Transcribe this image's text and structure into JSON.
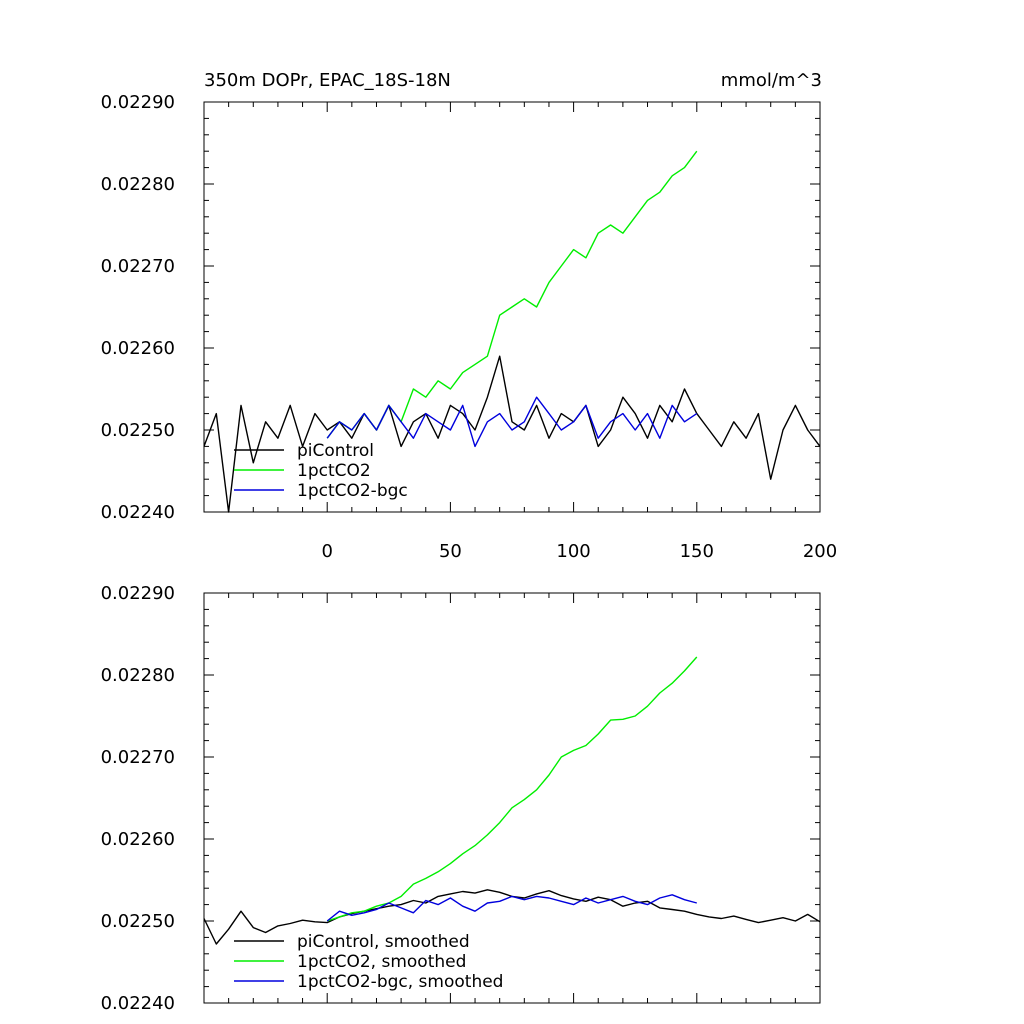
{
  "chart_data": [
    {
      "type": "line",
      "title_left": "350m DOPr, EPAC_18S-18N",
      "title_right": "mmol/m^3",
      "xlim": [
        -50,
        200
      ],
      "ylim": [
        0.0224,
        0.0229
      ],
      "yticks": [
        "0.02290",
        "0.02280",
        "0.02270",
        "0.02260",
        "0.02250",
        "0.02240"
      ],
      "xticks": [
        "0",
        "50",
        "100",
        "150",
        "200"
      ],
      "series": [
        {
          "name": "piControl",
          "color": "#000000",
          "x": [
            -50,
            -45,
            -40,
            -35,
            -30,
            -25,
            -20,
            -15,
            -10,
            -5,
            0,
            5,
            10,
            15,
            20,
            25,
            30,
            35,
            40,
            45,
            50,
            55,
            60,
            65,
            70,
            75,
            80,
            85,
            90,
            95,
            100,
            105,
            110,
            115,
            120,
            125,
            130,
            135,
            140,
            145,
            150,
            155,
            160,
            165,
            170,
            175,
            180,
            185,
            190,
            195,
            200
          ],
          "values": [
            0.02248,
            0.02252,
            0.0224,
            0.02253,
            0.02246,
            0.02251,
            0.02249,
            0.02253,
            0.02248,
            0.02252,
            0.0225,
            0.02251,
            0.02249,
            0.02252,
            0.0225,
            0.02253,
            0.02248,
            0.02251,
            0.02252,
            0.02249,
            0.02253,
            0.02252,
            0.0225,
            0.02254,
            0.02259,
            0.02251,
            0.0225,
            0.02253,
            0.02249,
            0.02252,
            0.02251,
            0.02253,
            0.02248,
            0.0225,
            0.02254,
            0.02252,
            0.02249,
            0.02253,
            0.02251,
            0.02255,
            0.02252,
            0.0225,
            0.02248,
            0.02251,
            0.02249,
            0.02252,
            0.02244,
            0.0225,
            0.02253,
            0.0225,
            0.02248
          ]
        },
        {
          "name": "1pctCO2",
          "color": "#00ee00",
          "x": [
            0,
            5,
            10,
            15,
            20,
            25,
            30,
            35,
            40,
            45,
            50,
            55,
            60,
            65,
            70,
            75,
            80,
            85,
            90,
            95,
            100,
            105,
            110,
            115,
            120,
            125,
            130,
            135,
            140,
            145,
            150
          ],
          "values": [
            0.02249,
            0.02251,
            0.0225,
            0.02252,
            0.0225,
            0.02253,
            0.02251,
            0.02255,
            0.02254,
            0.02256,
            0.02255,
            0.02257,
            0.02258,
            0.02259,
            0.02264,
            0.02265,
            0.02266,
            0.02265,
            0.02268,
            0.0227,
            0.02272,
            0.02271,
            0.02274,
            0.02275,
            0.02274,
            0.02276,
            0.02278,
            0.02279,
            0.02281,
            0.02282,
            0.02284
          ]
        },
        {
          "name": "1pctCO2-bgc",
          "color": "#0000dd",
          "x": [
            0,
            5,
            10,
            15,
            20,
            25,
            30,
            35,
            40,
            45,
            50,
            55,
            60,
            65,
            70,
            75,
            80,
            85,
            90,
            95,
            100,
            105,
            110,
            115,
            120,
            125,
            130,
            135,
            140,
            145,
            150
          ],
          "values": [
            0.02249,
            0.02251,
            0.0225,
            0.02252,
            0.0225,
            0.02253,
            0.02251,
            0.02249,
            0.02252,
            0.02251,
            0.0225,
            0.02253,
            0.02248,
            0.02251,
            0.02252,
            0.0225,
            0.02251,
            0.02254,
            0.02252,
            0.0225,
            0.02251,
            0.02253,
            0.02249,
            0.02251,
            0.02252,
            0.0225,
            0.02252,
            0.02249,
            0.02253,
            0.02251,
            0.02252
          ]
        }
      ]
    },
    {
      "type": "line",
      "xlim": [
        -50,
        200
      ],
      "ylim": [
        0.0224,
        0.0229
      ],
      "yticks": [
        "0.02290",
        "0.02280",
        "0.02270",
        "0.02260",
        "0.02250",
        "0.02240"
      ],
      "series": [
        {
          "name": "piControl, smoothed",
          "color": "#000000",
          "x": [
            -50,
            -45,
            -40,
            -35,
            -30,
            -25,
            -20,
            -15,
            -10,
            -5,
            0,
            5,
            10,
            15,
            20,
            25,
            30,
            35,
            40,
            45,
            50,
            55,
            60,
            65,
            70,
            75,
            80,
            85,
            90,
            95,
            100,
            105,
            110,
            115,
            120,
            125,
            130,
            135,
            140,
            145,
            150,
            155,
            160,
            165,
            170,
            175,
            180,
            185,
            190,
            195,
            200
          ],
          "values": [
            0.022503,
            0.022472,
            0.02249,
            0.022512,
            0.022492,
            0.022486,
            0.022494,
            0.022497,
            0.022501,
            0.022499,
            0.022498,
            0.022505,
            0.022509,
            0.022512,
            0.022515,
            0.022518,
            0.02252,
            0.022525,
            0.022522,
            0.02253,
            0.022533,
            0.022536,
            0.022534,
            0.022538,
            0.022535,
            0.02253,
            0.022528,
            0.022533,
            0.022537,
            0.022531,
            0.022527,
            0.022524,
            0.022529,
            0.022526,
            0.022518,
            0.022522,
            0.022524,
            0.022516,
            0.022514,
            0.022512,
            0.022508,
            0.022505,
            0.022503,
            0.022506,
            0.022502,
            0.022498,
            0.022501,
            0.022504,
            0.0225,
            0.022508,
            0.022499
          ]
        },
        {
          "name": "1pctCO2, smoothed",
          "color": "#00ee00",
          "x": [
            0,
            5,
            10,
            15,
            20,
            25,
            30,
            35,
            40,
            45,
            50,
            55,
            60,
            65,
            70,
            75,
            80,
            85,
            90,
            95,
            100,
            105,
            110,
            115,
            120,
            125,
            130,
            135,
            140,
            145,
            150
          ],
          "values": [
            0.0225,
            0.022505,
            0.02251,
            0.022512,
            0.022518,
            0.022522,
            0.02253,
            0.022545,
            0.022552,
            0.02256,
            0.02257,
            0.022582,
            0.022592,
            0.022605,
            0.02262,
            0.022638,
            0.022648,
            0.02266,
            0.022678,
            0.0227,
            0.022708,
            0.022714,
            0.022728,
            0.022745,
            0.022746,
            0.02275,
            0.022762,
            0.022778,
            0.02279,
            0.022805,
            0.022822
          ]
        },
        {
          "name": "1pctCO2-bgc, smoothed",
          "color": "#0000dd",
          "x": [
            0,
            5,
            10,
            15,
            20,
            25,
            30,
            35,
            40,
            45,
            50,
            55,
            60,
            65,
            70,
            75,
            80,
            85,
            90,
            95,
            100,
            105,
            110,
            115,
            120,
            125,
            130,
            135,
            140,
            145,
            150
          ],
          "values": [
            0.0225,
            0.022512,
            0.022507,
            0.02251,
            0.022514,
            0.022522,
            0.022516,
            0.02251,
            0.022525,
            0.02252,
            0.022528,
            0.022518,
            0.022512,
            0.022522,
            0.022524,
            0.02253,
            0.022526,
            0.02253,
            0.022528,
            0.022524,
            0.02252,
            0.022528,
            0.022522,
            0.022526,
            0.02253,
            0.022524,
            0.02252,
            0.022528,
            0.022532,
            0.022526,
            0.022522
          ]
        }
      ]
    }
  ]
}
